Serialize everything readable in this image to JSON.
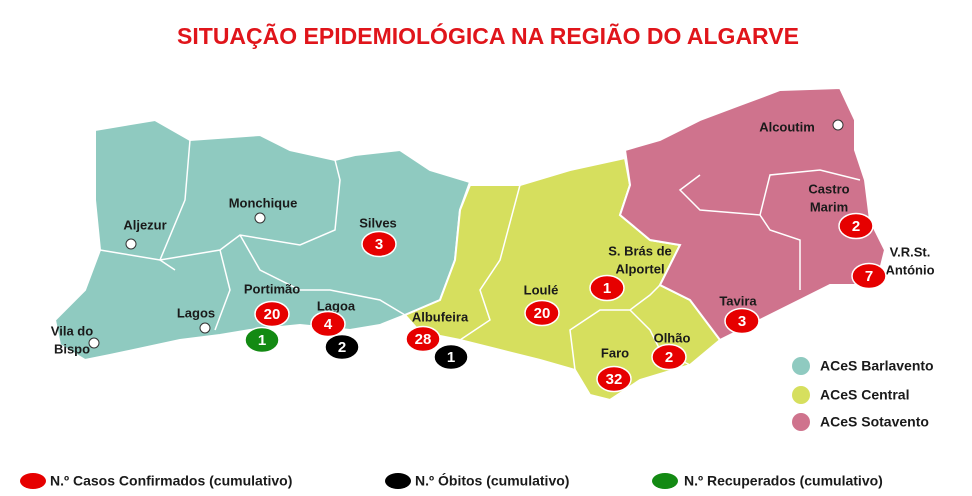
{
  "title": "SITUAÇÃO EPIDEMIOLÓGICA NA REGIÃO DO ALGARVE",
  "regions": [
    {
      "name": "ACeS Barlavento",
      "color": "#8fcac0"
    },
    {
      "name": "ACeS Central",
      "color": "#d6df5e"
    },
    {
      "name": "ACeS Sotavento",
      "color": "#cf738d"
    }
  ],
  "markers": [
    {
      "label": "N.º Casos Confirmados (cumulativo)",
      "color": "#e60000"
    },
    {
      "label": "N.º Óbitos (cumulativo)",
      "color": "#000000"
    },
    {
      "label": "N.º Recuperados (cumulativo)",
      "color": "#138a13"
    }
  ],
  "municipalities": [
    {
      "name": [
        "Aljezur"
      ]
    },
    {
      "name": [
        "Monchique"
      ]
    },
    {
      "name": [
        "Silves"
      ],
      "cases": 3
    },
    {
      "name": [
        "Lagos"
      ]
    },
    {
      "name": [
        "Vila do",
        "Bispo"
      ]
    },
    {
      "name": [
        "Portimão"
      ],
      "cases": 20,
      "recovered": 1
    },
    {
      "name": [
        "Lagoa"
      ],
      "cases": 4,
      "deaths": 2
    },
    {
      "name": [
        "Albufeira"
      ],
      "cases": 28,
      "deaths": 1
    },
    {
      "name": [
        "Loulé"
      ],
      "cases": 20
    },
    {
      "name": [
        "S. Brás de",
        "Alportel"
      ],
      "cases": 1
    },
    {
      "name": [
        "Faro"
      ],
      "cases": 32
    },
    {
      "name": [
        "Olhão"
      ],
      "cases": 2
    },
    {
      "name": [
        "Tavira"
      ],
      "cases": 3
    },
    {
      "name": [
        "Castro",
        "Marim"
      ],
      "cases": 2
    },
    {
      "name": [
        "V.R.St.",
        "António"
      ],
      "cases": 7
    },
    {
      "name": [
        "Alcoutim"
      ]
    }
  ]
}
